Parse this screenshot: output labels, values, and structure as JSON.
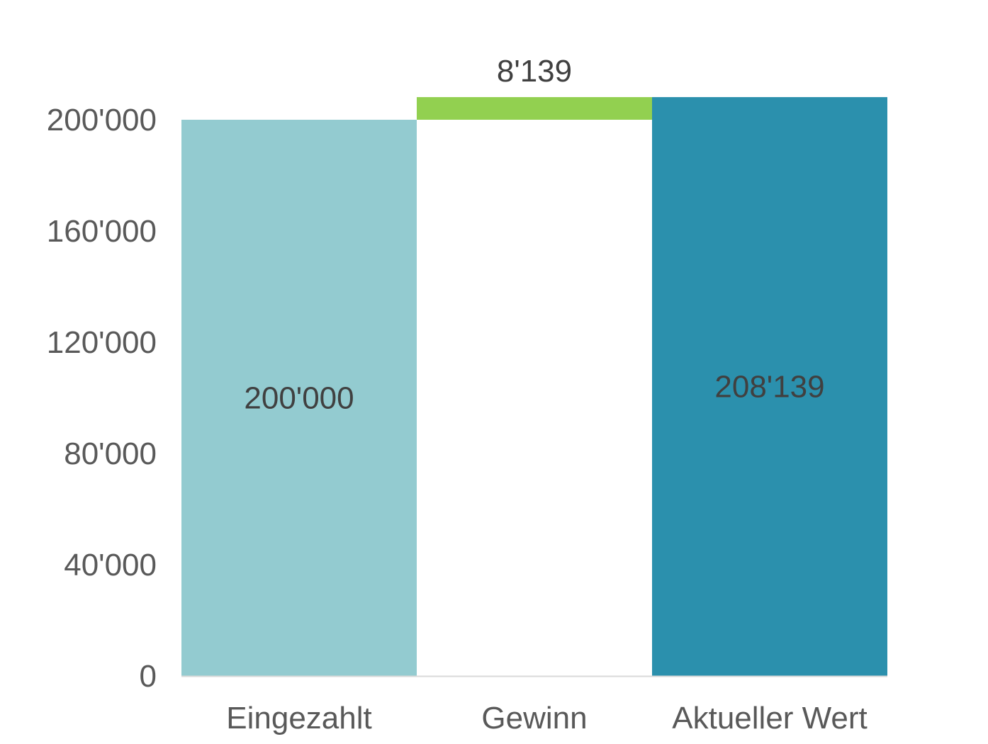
{
  "chart_data": {
    "type": "bar",
    "subtype": "waterfall",
    "title": "",
    "xlabel": "",
    "ylabel": "",
    "categories": [
      "Eingezahlt",
      "Gewinn",
      "Aktueller Wert"
    ],
    "bars": [
      {
        "category": "Eingezahlt",
        "base": 0,
        "value": 200000,
        "label": "200'000",
        "kind": "total",
        "color": "#93CBD0"
      },
      {
        "category": "Gewinn",
        "base": 200000,
        "value": 8139,
        "label": "8'139",
        "kind": "increase",
        "color": "#92D050"
      },
      {
        "category": "Aktueller Wert",
        "base": 0,
        "value": 208139,
        "label": "208'139",
        "kind": "total",
        "color": "#2B90AD"
      }
    ],
    "ylim": [
      0,
      200000
    ],
    "yticks": [
      0,
      40000,
      80000,
      120000,
      160000,
      200000
    ],
    "ytick_labels": [
      "0",
      "40'000",
      "80'000",
      "120'000",
      "160'000",
      "200'000"
    ],
    "grid": false,
    "legend": "none",
    "axis_line_color": "#D9D9D9"
  }
}
